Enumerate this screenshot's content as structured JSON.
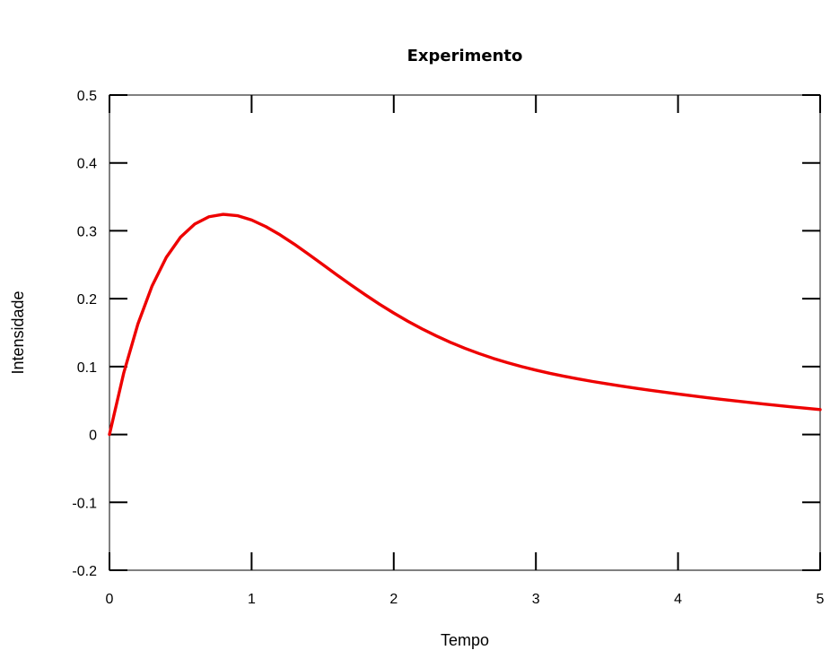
{
  "chart_data": {
    "type": "line",
    "title": "Experimento",
    "xlabel": "Tempo",
    "ylabel": "Intensidade",
    "xlim": [
      0,
      5
    ],
    "ylim": [
      -0.2,
      0.5
    ],
    "x_ticks": [
      0,
      1,
      2,
      3,
      4,
      5
    ],
    "x_tick_labels": [
      "0",
      "1",
      "2",
      "3",
      "4",
      "5"
    ],
    "y_ticks": [
      -0.2,
      -0.1,
      0,
      0.1,
      0.2,
      0.3,
      0.4,
      0.5
    ],
    "y_tick_labels": [
      "-0.2",
      "-0.1",
      "0",
      "0.1",
      "0.2",
      "0.3",
      "0.4",
      "0.5"
    ],
    "grid": false,
    "legend": "none",
    "series": [
      {
        "color": "#ee0000",
        "x": [
          0,
          0.1,
          0.2,
          0.3,
          0.4,
          0.5,
          0.6,
          0.7,
          0.8,
          0.9,
          1.0,
          1.1,
          1.2,
          1.3,
          1.4,
          1.5,
          1.6,
          1.7,
          1.8,
          1.9,
          2.0,
          2.1,
          2.2,
          2.3,
          2.4,
          2.5,
          2.6,
          2.7,
          2.8,
          2.9,
          3.0,
          3.1,
          3.2,
          3.3,
          3.4,
          3.5,
          3.6,
          3.7,
          3.8,
          3.9,
          4.0,
          4.1,
          4.2,
          4.3,
          4.4,
          4.5,
          4.6,
          4.7,
          4.8,
          4.9,
          5.0
        ],
        "y": [
          0,
          0.0903,
          0.1627,
          0.2189,
          0.2609,
          0.2907,
          0.31,
          0.3207,
          0.3243,
          0.3223,
          0.3159,
          0.3062,
          0.2941,
          0.2804,
          0.2656,
          0.2504,
          0.2351,
          0.2201,
          0.2057,
          0.1919,
          0.1789,
          0.1667,
          0.1554,
          0.1451,
          0.1356,
          0.127,
          0.1192,
          0.1121,
          0.1058,
          0.1,
          0.0948,
          0.09,
          0.0857,
          0.0817,
          0.078,
          0.0746,
          0.0713,
          0.0682,
          0.0652,
          0.0624,
          0.0596,
          0.057,
          0.0544,
          0.0519,
          0.0495,
          0.0472,
          0.0449,
          0.0427,
          0.0406,
          0.0386,
          0.0366
        ]
      }
    ]
  }
}
